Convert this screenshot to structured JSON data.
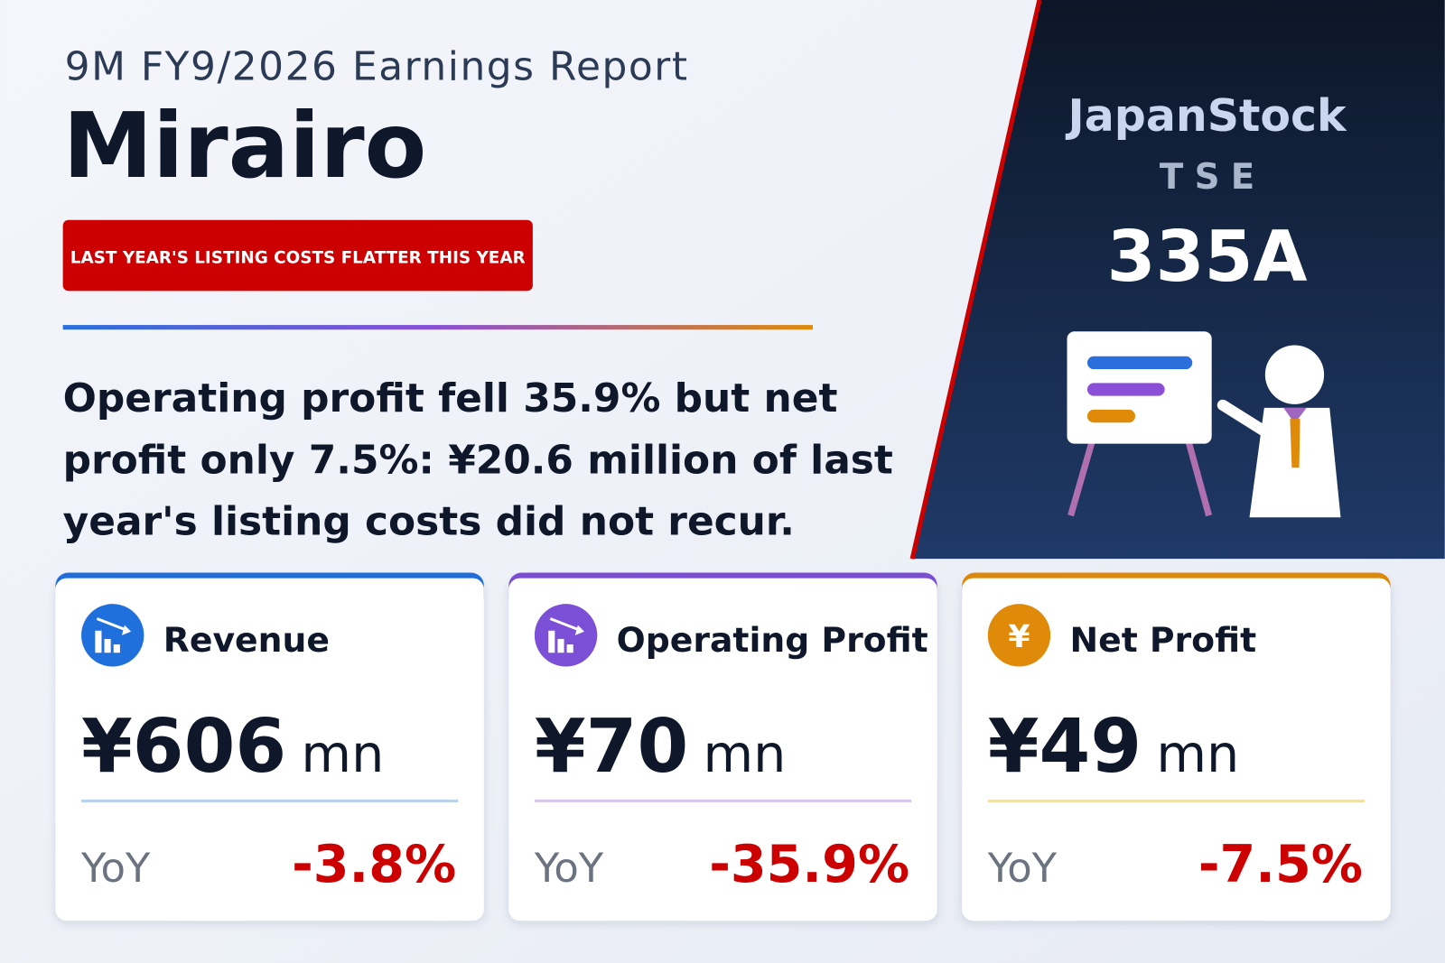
{
  "header": {
    "subtitle": "9M FY9/2026 Earnings Report",
    "company": "Mirairo",
    "badge": "LAST YEAR'S LISTING COSTS FLATTER THIS YEAR"
  },
  "headline": [
    "Operating profit fell 35.9% but net",
    "profit only 7.5%: ¥20.6 million of last",
    "year's listing costs did not recur."
  ],
  "brand": {
    "name": "JapanStock",
    "exchange": "TSE",
    "code": "335A"
  },
  "cards": [
    {
      "label": "Revenue",
      "value": "¥606",
      "unit": "mn",
      "yoy_label": "YoY",
      "yoy": "-3.8%"
    },
    {
      "label": "Operating Profit",
      "value": "¥70",
      "unit": "mn",
      "yoy_label": "YoY",
      "yoy": "-35.9%"
    },
    {
      "label": "Net Profit",
      "icon": "¥",
      "value": "¥49",
      "unit": "mn",
      "yoy_label": "YoY",
      "yoy": "-7.5%"
    }
  ]
}
